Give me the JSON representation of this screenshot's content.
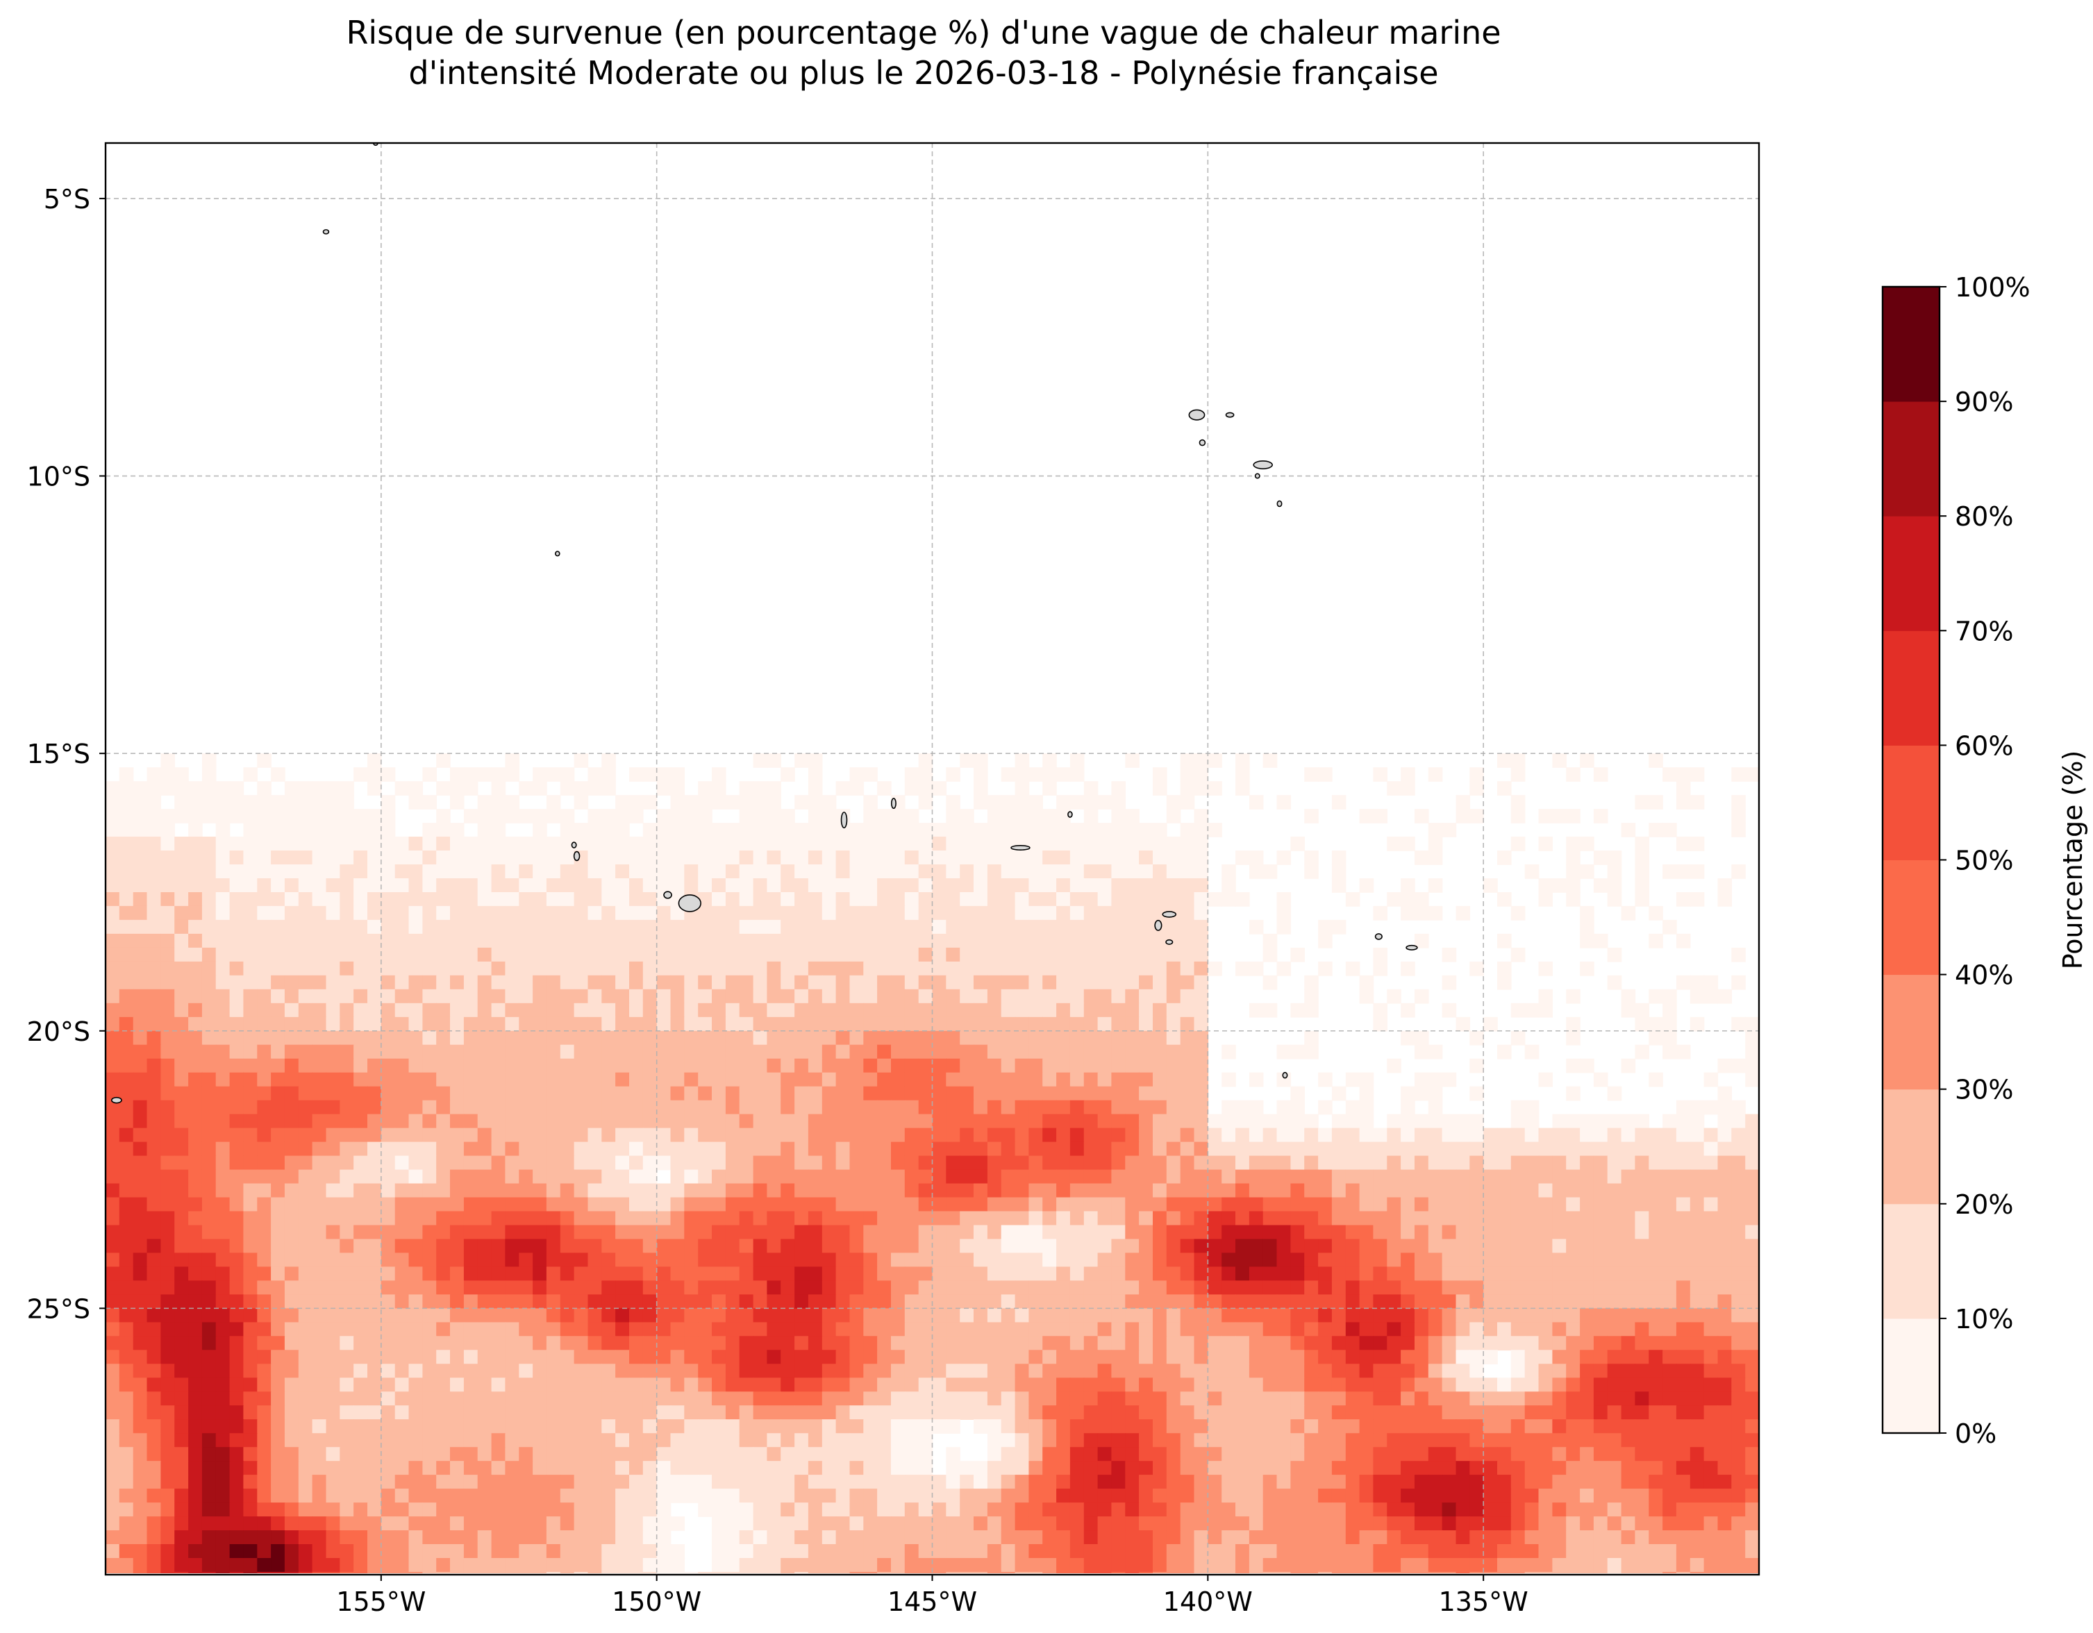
{
  "title_lines": [
    "Risque de survenue (en pourcentage %) d'une vague de chaleur marine",
    "d'intensité Moderate ou plus le 2026-03-18 - Polynésie française"
  ],
  "map": {
    "region": "Polynésie française",
    "lon_range": [
      -160,
      -130
    ],
    "lat_range": [
      -31,
      -5
    ],
    "lat_ticks": [
      {
        "value": -5,
        "label": "5°S"
      },
      {
        "value": -10,
        "label": "10°S"
      },
      {
        "value": -15,
        "label": "15°S"
      },
      {
        "value": -20,
        "label": "20°S"
      },
      {
        "value": -25,
        "label": "25°S"
      }
    ],
    "lon_ticks": [
      {
        "value": -155,
        "label": "155°W"
      },
      {
        "value": -150,
        "label": "150°W"
      },
      {
        "value": -145,
        "label": "145°W"
      },
      {
        "value": -140,
        "label": "140°W"
      },
      {
        "value": -135,
        "label": "135°W"
      }
    ],
    "gridlines": true,
    "coastlines": true,
    "land_color": "#d9d9d9"
  },
  "colorbar": {
    "label": "Pourcentage (%)",
    "ticks": [
      "0%",
      "10%",
      "20%",
      "30%",
      "40%",
      "50%",
      "60%",
      "70%",
      "80%",
      "90%",
      "100%"
    ],
    "colors": [
      "#fff5f0",
      "#fee0d2",
      "#fcbba1",
      "#fc9272",
      "#fb6a4a",
      "#f4513a",
      "#e32f27",
      "#c9181d",
      "#a50f15",
      "#67000d"
    ]
  },
  "chart_data": {
    "type": "heatmap",
    "variable": "Risque de survenue d'une vague de chaleur marine (%)",
    "xlabel": "",
    "ylabel": "",
    "x_range": [
      -160,
      -130
    ],
    "y_range": [
      -31,
      -5
    ],
    "levels": [
      0,
      10,
      20,
      30,
      40,
      50,
      60,
      70,
      80,
      90,
      100
    ],
    "hotspots": [
      {
        "lon": -157.3,
        "lat": -29.5,
        "value": 95,
        "sx": 1.4,
        "sy": 0.6
      },
      {
        "lon": -158.0,
        "lat": -28.0,
        "value": 85,
        "sx": 0.6,
        "sy": 1.4
      },
      {
        "lon": -158.3,
        "lat": -25.5,
        "value": 85,
        "sx": 0.8,
        "sy": 1.2
      },
      {
        "lon": -159.4,
        "lat": -24.0,
        "value": 70,
        "sx": 0.9,
        "sy": 1.5
      },
      {
        "lon": -159.5,
        "lat": -21.5,
        "value": 60,
        "sx": 0.6,
        "sy": 1.0
      },
      {
        "lon": -156.5,
        "lat": -21.6,
        "value": 58,
        "sx": 1.4,
        "sy": 0.7
      },
      {
        "lon": -152.5,
        "lat": -24.0,
        "value": 75,
        "sx": 1.2,
        "sy": 0.7
      },
      {
        "lon": -150.5,
        "lat": -25.0,
        "value": 70,
        "sx": 0.8,
        "sy": 0.6
      },
      {
        "lon": -154.0,
        "lat": -23.0,
        "value": 52,
        "sx": 0.9,
        "sy": 0.6
      },
      {
        "lon": -147.5,
        "lat": -24.5,
        "value": 75,
        "sx": 1.0,
        "sy": 1.1
      },
      {
        "lon": -147.8,
        "lat": -26.0,
        "value": 68,
        "sx": 1.0,
        "sy": 0.5
      },
      {
        "lon": -148.8,
        "lat": -23.5,
        "value": 55,
        "sx": 0.7,
        "sy": 0.8
      },
      {
        "lon": -144.5,
        "lat": -22.5,
        "value": 65,
        "sx": 0.8,
        "sy": 0.6
      },
      {
        "lon": -142.5,
        "lat": -22.0,
        "value": 62,
        "sx": 0.9,
        "sy": 0.6
      },
      {
        "lon": -145.5,
        "lat": -21.0,
        "value": 45,
        "sx": 1.2,
        "sy": 0.7
      },
      {
        "lon": -142.0,
        "lat": -28.0,
        "value": 80,
        "sx": 1.1,
        "sy": 1.2
      },
      {
        "lon": -141.7,
        "lat": -29.5,
        "value": 60,
        "sx": 0.6,
        "sy": 0.7
      },
      {
        "lon": -139.2,
        "lat": -24.0,
        "value": 85,
        "sx": 1.2,
        "sy": 0.7
      },
      {
        "lon": -137.0,
        "lat": -25.5,
        "value": 72,
        "sx": 1.0,
        "sy": 0.9
      },
      {
        "lon": -135.8,
        "lat": -28.5,
        "value": 85,
        "sx": 1.3,
        "sy": 0.9
      },
      {
        "lon": -132.0,
        "lat": -26.5,
        "value": 70,
        "sx": 1.8,
        "sy": 0.8
      },
      {
        "lon": -131.0,
        "lat": -28.0,
        "value": 62,
        "sx": 1.0,
        "sy": 0.8
      },
      {
        "lon": -130.5,
        "lat": -30.5,
        "value": 50,
        "sx": 1.0,
        "sy": 0.6
      },
      {
        "lon": -153.0,
        "lat": -28.5,
        "value": 35,
        "sx": 1.5,
        "sy": 1.0
      },
      {
        "lon": -138.0,
        "lat": -29.5,
        "value": 35,
        "sx": 1.5,
        "sy": 0.8
      },
      {
        "lon": -145.0,
        "lat": -30.0,
        "value": 32,
        "sx": 1.5,
        "sy": 0.8
      },
      {
        "lon": -150.0,
        "lat": -21.5,
        "value": 28,
        "sx": 2.0,
        "sy": 0.8
      }
    ],
    "background_band": [
      {
        "lat": -15.0,
        "value": 0
      },
      {
        "lat": -16.5,
        "value": 6
      },
      {
        "lat": -18.0,
        "value": 13
      },
      {
        "lat": -19.5,
        "value": 20
      },
      {
        "lat": -21.0,
        "value": 25
      },
      {
        "lat": -23.0,
        "value": 24
      },
      {
        "lat": -26.0,
        "value": 22
      },
      {
        "lat": -31.0,
        "value": 18
      }
    ],
    "clear_zones": [
      {
        "lon": -144.5,
        "lat": -27.5,
        "value": 0,
        "sx": 1.2,
        "sy": 0.6
      },
      {
        "lon": -149.3,
        "lat": -29.0,
        "value": 0,
        "sx": 0.8,
        "sy": 1.0
      },
      {
        "lon": -150.0,
        "lat": -22.5,
        "value": 5,
        "sx": 1.0,
        "sy": 0.5
      },
      {
        "lon": -154.8,
        "lat": -22.5,
        "value": 10,
        "sx": 1.0,
        "sy": 0.5
      },
      {
        "lon": -134.7,
        "lat": -26.0,
        "value": 0,
        "sx": 0.8,
        "sy": 0.5
      },
      {
        "lon": -143.0,
        "lat": -23.8,
        "value": 8,
        "sx": 1.0,
        "sy": 0.4
      }
    ]
  },
  "islands": [
    {
      "lon": -155.1,
      "lat": -4.0,
      "rx": 0.04,
      "ry": 0.04
    },
    {
      "lon": -156.0,
      "lat": -5.6,
      "rx": 0.05,
      "ry": 0.03
    },
    {
      "lon": -140.2,
      "lat": -8.9,
      "rx": 0.14,
      "ry": 0.09
    },
    {
      "lon": -139.6,
      "lat": -8.9,
      "rx": 0.07,
      "ry": 0.04
    },
    {
      "lon": -140.1,
      "lat": -9.4,
      "rx": 0.05,
      "ry": 0.05
    },
    {
      "lon": -139.0,
      "lat": -9.8,
      "rx": 0.17,
      "ry": 0.07
    },
    {
      "lon": -139.1,
      "lat": -10.0,
      "rx": 0.04,
      "ry": 0.04
    },
    {
      "lon": -138.7,
      "lat": -10.5,
      "rx": 0.04,
      "ry": 0.05
    },
    {
      "lon": -151.8,
      "lat": -11.4,
      "rx": 0.03,
      "ry": 0.04
    },
    {
      "lon": -145.7,
      "lat": -15.9,
      "rx": 0.04,
      "ry": 0.09
    },
    {
      "lon": -146.6,
      "lat": -16.2,
      "rx": 0.05,
      "ry": 0.14
    },
    {
      "lon": -142.5,
      "lat": -16.1,
      "rx": 0.03,
      "ry": 0.05
    },
    {
      "lon": -143.4,
      "lat": -16.7,
      "rx": 0.17,
      "ry": 0.04
    },
    {
      "lon": -151.5,
      "lat": -16.65,
      "rx": 0.04,
      "ry": 0.05
    },
    {
      "lon": -151.45,
      "lat": -16.85,
      "rx": 0.05,
      "ry": 0.08
    },
    {
      "lon": -149.8,
      "lat": -17.55,
      "rx": 0.07,
      "ry": 0.06
    },
    {
      "lon": -149.4,
      "lat": -17.7,
      "rx": 0.2,
      "ry": 0.15
    },
    {
      "lon": -140.7,
      "lat": -17.9,
      "rx": 0.12,
      "ry": 0.05
    },
    {
      "lon": -140.9,
      "lat": -18.1,
      "rx": 0.06,
      "ry": 0.09
    },
    {
      "lon": -140.7,
      "lat": -18.4,
      "rx": 0.06,
      "ry": 0.04
    },
    {
      "lon": -136.9,
      "lat": -18.3,
      "rx": 0.06,
      "ry": 0.05
    },
    {
      "lon": -136.3,
      "lat": -18.5,
      "rx": 0.1,
      "ry": 0.04
    },
    {
      "lon": -138.6,
      "lat": -20.8,
      "rx": 0.04,
      "ry": 0.05
    },
    {
      "lon": -159.8,
      "lat": -21.25,
      "rx": 0.09,
      "ry": 0.05
    }
  ]
}
